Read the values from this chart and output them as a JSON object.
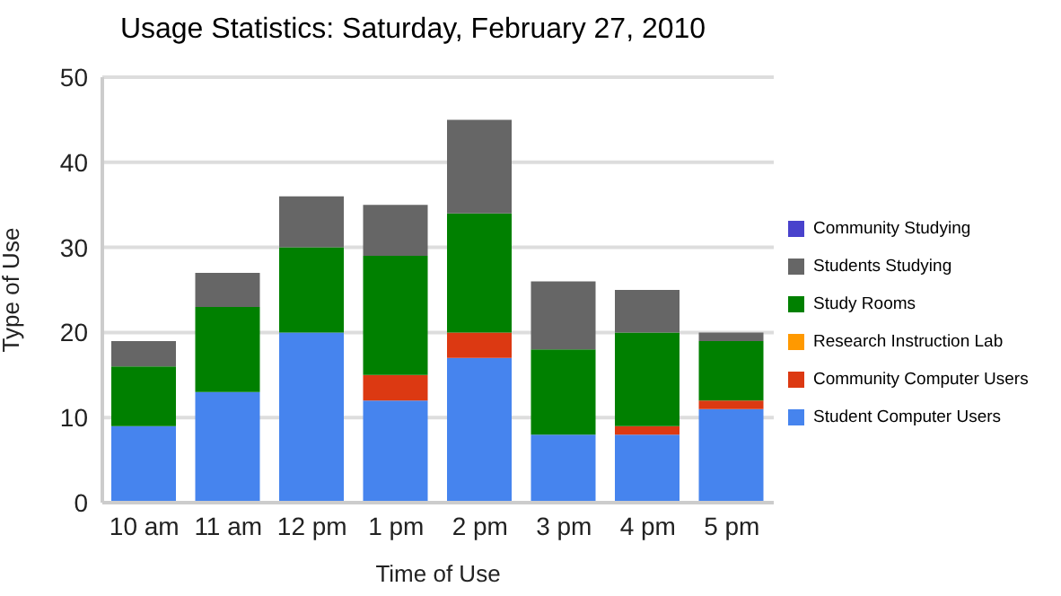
{
  "chart_data": {
    "type": "bar",
    "title": "Usage Statistics: Saturday, February 27, 2010",
    "xlabel": "Time of Use",
    "ylabel": "Type of Use",
    "categories": [
      "10 am",
      "11 am",
      "12 pm",
      "1 pm",
      "2 pm",
      "3 pm",
      "4 pm",
      "5 pm"
    ],
    "stacked": true,
    "ylim": [
      0,
      50
    ],
    "yticks": [
      0,
      10,
      20,
      30,
      40,
      50
    ],
    "grid": "y",
    "legend": "right",
    "series": [
      {
        "name": "Student Computer Users",
        "color": "#4684ee",
        "values": [
          9,
          13,
          20,
          12,
          17,
          8,
          8,
          11
        ]
      },
      {
        "name": "Community Computer Users",
        "color": "#dc3912",
        "values": [
          0,
          0,
          0,
          3,
          3,
          0,
          1,
          1
        ]
      },
      {
        "name": "Research Instruction Lab",
        "color": "#ff9900",
        "values": [
          0,
          0,
          0,
          0,
          0,
          0,
          0,
          0
        ]
      },
      {
        "name": "Study Rooms",
        "color": "#008000",
        "values": [
          7,
          10,
          10,
          14,
          14,
          10,
          11,
          7
        ]
      },
      {
        "name": "Students Studying",
        "color": "#666666",
        "values": [
          3,
          4,
          6,
          6,
          11,
          8,
          5,
          1
        ]
      },
      {
        "name": "Community Studying",
        "color": "#4942cc",
        "values": [
          0,
          0,
          0,
          0,
          0,
          0,
          0,
          0
        ]
      }
    ]
  }
}
